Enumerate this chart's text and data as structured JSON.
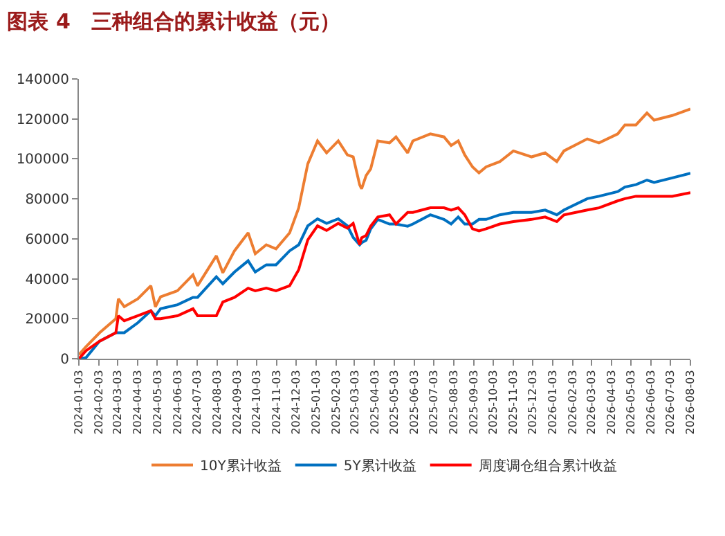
{
  "chart_data": {
    "type": "line",
    "title": "图表 4　三种组合的累计收益（元）",
    "x": [
      "2024-01-03",
      "2024-01-14",
      "2024-02-04",
      "2024-02-29",
      "2024-03-04",
      "2024-03-13",
      "2024-04-03",
      "2024-04-23",
      "2024-04-30",
      "2024-05-08",
      "2024-06-03",
      "2024-06-27",
      "2024-07-04",
      "2024-08-02",
      "2024-08-12",
      "2024-08-30",
      "2024-09-20",
      "2024-10-01",
      "2024-10-18",
      "2024-11-02",
      "2024-11-23",
      "2024-12-07",
      "2024-12-21",
      "2025-01-05",
      "2025-01-19",
      "2025-02-06",
      "2025-02-20",
      "2025-03-01",
      "2025-03-11",
      "2025-03-14",
      "2025-03-21",
      "2025-03-28",
      "2025-04-08",
      "2025-04-26",
      "2025-05-06",
      "2025-05-24",
      "2025-06-01",
      "2025-06-28",
      "2025-07-19",
      "2025-07-30",
      "2025-08-10",
      "2025-08-20",
      "2025-09-01",
      "2025-09-11",
      "2025-09-22",
      "2025-10-13",
      "2025-11-03",
      "2025-12-01",
      "2025-12-22",
      "2026-01-09",
      "2026-01-20",
      "2026-02-25",
      "2026-03-15",
      "2026-04-13",
      "2026-04-24",
      "2026-05-11",
      "2026-05-28",
      "2026-06-08",
      "2026-07-06",
      "2026-08-03"
    ],
    "series": [
      {
        "name": "10Y累计收益",
        "color": "#ed7d31",
        "values": [
          2000,
          6000,
          13000,
          20000,
          30000,
          26000,
          30000,
          36500,
          26000,
          31000,
          34000,
          42000,
          36500,
          51500,
          43000,
          54000,
          63000,
          52500,
          57000,
          55000,
          63000,
          75500,
          97500,
          109000,
          103000,
          109000,
          102000,
          101000,
          87000,
          85000,
          91700,
          95000,
          109000,
          108000,
          111000,
          103000,
          109000,
          112500,
          111000,
          106700,
          109000,
          102000,
          96000,
          93000,
          96000,
          98600,
          104000,
          101000,
          103000,
          98600,
          104000,
          110000,
          108000,
          112500,
          117000,
          117000,
          123000,
          119400,
          121700,
          125000
        ]
      },
      {
        "name": "5Y累计收益",
        "color": "#0070c0",
        "values": [
          0,
          500,
          8800,
          13000,
          13000,
          13000,
          18000,
          24000,
          21500,
          25000,
          27000,
          30700,
          30700,
          41000,
          37500,
          43400,
          49000,
          43400,
          47000,
          47000,
          54000,
          57000,
          66500,
          70000,
          67700,
          70000,
          66500,
          60700,
          57000,
          58000,
          59300,
          65000,
          69700,
          67400,
          67400,
          66300,
          67400,
          72000,
          69700,
          67400,
          70900,
          67400,
          67400,
          69700,
          69700,
          72000,
          73200,
          73200,
          74400,
          72000,
          74400,
          80100,
          81300,
          83600,
          85900,
          87100,
          89400,
          88200,
          90500,
          92800
        ]
      },
      {
        "name": "周度调仓组合累计收益",
        "color": "#ff0000",
        "values": [
          0,
          4000,
          8800,
          13000,
          21500,
          19000,
          21500,
          24000,
          20000,
          20000,
          21500,
          25000,
          21500,
          21500,
          28400,
          30700,
          35300,
          34000,
          35300,
          34000,
          36500,
          44500,
          59500,
          66500,
          64200,
          67700,
          65400,
          67700,
          57000,
          60500,
          61700,
          66300,
          70900,
          72000,
          67400,
          73200,
          73200,
          75500,
          75500,
          74400,
          75500,
          72000,
          65000,
          64000,
          65000,
          67400,
          68600,
          69700,
          70900,
          68600,
          72000,
          74400,
          75500,
          79000,
          80100,
          81300,
          81300,
          81300,
          81300,
          83100
        ]
      }
    ],
    "xlim": [
      "2024-01-03",
      "2026-08-03"
    ],
    "xticks": [
      "2024-01-03",
      "2024-02-03",
      "2024-03-03",
      "2024-04-03",
      "2024-05-03",
      "2024-06-03",
      "2024-07-03",
      "2024-08-03",
      "2024-09-03",
      "2024-10-03",
      "2024-11-03",
      "2024-12-03",
      "2025-01-03",
      "2025-02-03",
      "2025-03-03",
      "2025-04-03",
      "2025-05-03",
      "2025-06-03",
      "2025-07-03",
      "2025-08-03",
      "2025-09-03",
      "2025-10-03",
      "2025-11-03",
      "2025-12-03",
      "2026-01-03",
      "2026-02-03",
      "2026-03-03",
      "2026-04-03",
      "2026-05-03",
      "2026-06-03",
      "2026-07-03",
      "2026-08-03"
    ],
    "ylim": [
      0,
      140000
    ],
    "yticks": [
      0,
      20000,
      40000,
      60000,
      80000,
      100000,
      120000,
      140000
    ],
    "legend": "bottom",
    "marker": "none",
    "line_style": "solid"
  }
}
